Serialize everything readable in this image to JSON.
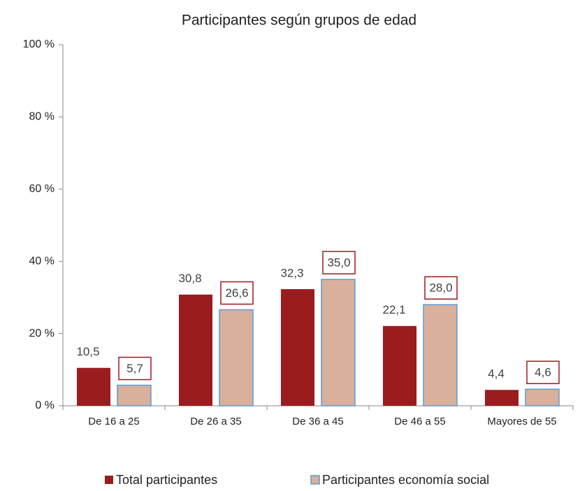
{
  "chart_data": {
    "type": "bar",
    "title": "Participantes según grupos de edad",
    "categories": [
      "De 16 a 25",
      "De 26 a 35",
      "De 36 a 45",
      "De 46 a 55",
      "Mayores de 55"
    ],
    "series": [
      {
        "name": "Total participantes",
        "color": "#9b1c1f",
        "values": [
          10.5,
          30.8,
          32.3,
          22.1,
          4.4
        ],
        "value_labels": [
          "10,5",
          "30,8",
          "32,3",
          "22,1",
          "4,4"
        ]
      },
      {
        "name": "Participantes economía social",
        "color": "#d9b09b",
        "values": [
          5.7,
          26.6,
          35.0,
          28.0,
          4.6
        ],
        "value_labels": [
          "5,7",
          "26,6",
          "35,0",
          "28,0",
          "4,6"
        ]
      }
    ],
    "ylim": [
      0,
      100
    ],
    "yticks": [
      {
        "value": 0,
        "label": "0 %"
      },
      {
        "value": 20,
        "label": "20 %"
      },
      {
        "value": 40,
        "label": "40 %"
      },
      {
        "value": 60,
        "label": "60 %"
      },
      {
        "value": 80,
        "label": "80 %"
      },
      {
        "value": 100,
        "label": "100 %"
      }
    ],
    "grid": false,
    "legend": "bottom"
  }
}
